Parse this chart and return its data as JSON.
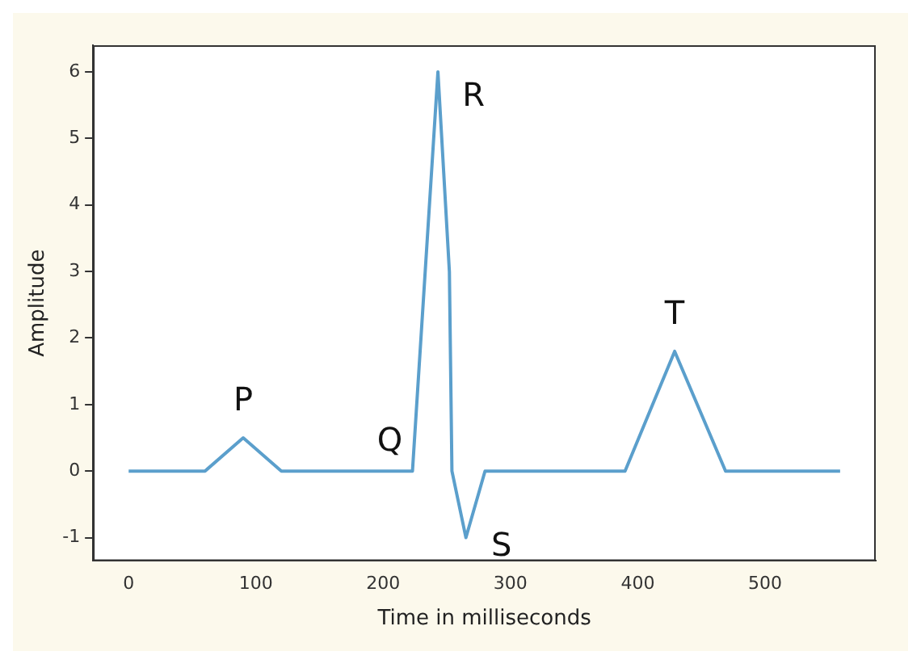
{
  "chart_data": {
    "type": "line",
    "xlabel": "Time in milliseconds",
    "ylabel": "Amplitude",
    "x": [
      0,
      60,
      90,
      120,
      223,
      243,
      252,
      254,
      265,
      280,
      390,
      429,
      469,
      559
    ],
    "series": [
      {
        "color": "#5b9fcc",
        "values": [
          0,
          0,
          0.5,
          0,
          0,
          6.0,
          3.0,
          0,
          -1.0,
          0,
          0,
          1.8,
          0,
          0
        ]
      }
    ],
    "xlim": [
      -28,
      587
    ],
    "ylim": [
      -1.35,
      6.4
    ],
    "xticks": [
      0,
      100,
      200,
      300,
      400,
      500
    ],
    "yticks": [
      -1,
      0,
      1,
      2,
      3,
      4,
      5,
      6
    ],
    "grid": false,
    "legend": false,
    "marker": "none",
    "line_style": "solid",
    "annotations": [
      {
        "text": "P",
        "x": 90,
        "y": 0.5
      },
      {
        "text": "Q",
        "x": 223,
        "y": 0
      },
      {
        "text": "R",
        "x": 243,
        "y": 6.0
      },
      {
        "text": "S",
        "x": 265,
        "y": -1.0
      },
      {
        "text": "T",
        "x": 429,
        "y": 1.8
      }
    ]
  }
}
